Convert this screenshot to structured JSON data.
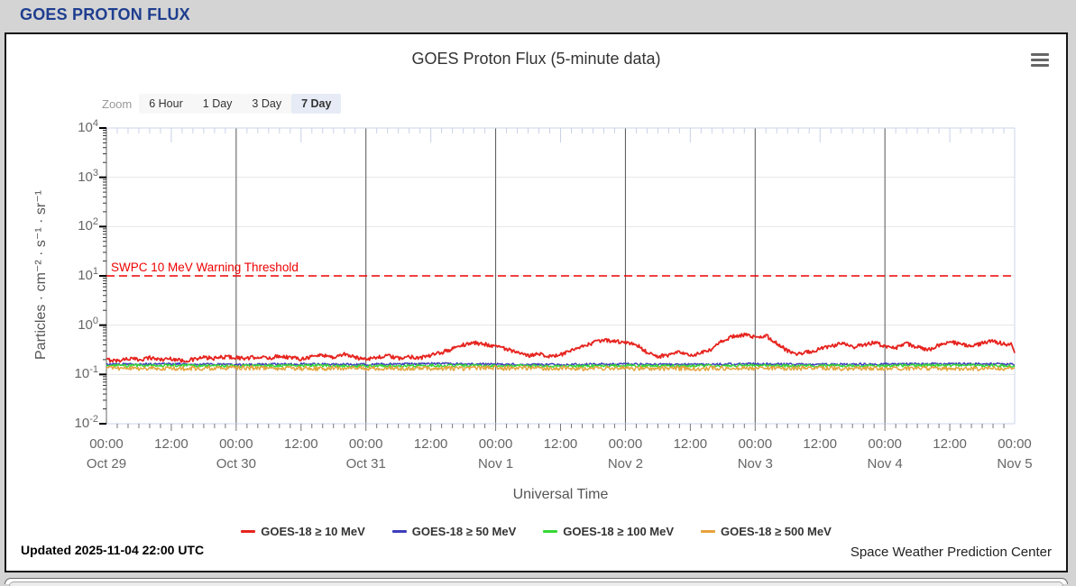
{
  "page": {
    "header_title": "GOES PROTON FLUX",
    "header_color": "#1e3e8f",
    "updated": "Updated 2025-11-04 22:00 UTC",
    "credit": "Space Weather Prediction Center"
  },
  "chart": {
    "title": "GOES Proton Flux (5-minute data)",
    "zoom_label": "Zoom",
    "zoom_buttons": [
      {
        "label": "6 Hour",
        "selected": false
      },
      {
        "label": "1 Day",
        "selected": false
      },
      {
        "label": "3 Day",
        "selected": false
      },
      {
        "label": "7 Day",
        "selected": true
      }
    ],
    "selected_button_bg": "#e6ebf5",
    "menu_icon": "hamburger-menu-icon"
  },
  "chart_data": {
    "type": "line",
    "title": "GOES Proton Flux (5-minute data)",
    "xlabel": "Universal Time",
    "ylabel": "Particles · cm⁻² · s⁻¹ · sr⁻¹",
    "x_range_hours": [
      0,
      168
    ],
    "ylog_range": [
      -2,
      4
    ],
    "grid": true,
    "legend_position": "bottom",
    "day_line_color": "#555555",
    "gridline_color": "#e6e6e6",
    "axis_border_color": "#ccd6eb",
    "y_ticks": [
      {
        "base": "10",
        "exp": "4"
      },
      {
        "base": "10",
        "exp": "3"
      },
      {
        "base": "10",
        "exp": "2"
      },
      {
        "base": "10",
        "exp": "1"
      },
      {
        "base": "10",
        "exp": "0"
      },
      {
        "base": "10",
        "exp": "-1"
      },
      {
        "base": "10",
        "exp": "-2"
      }
    ],
    "x_ticks": [
      {
        "hour": 0,
        "time": "00:00",
        "date": "Oct 29"
      },
      {
        "hour": 12,
        "time": "12:00"
      },
      {
        "hour": 24,
        "time": "00:00",
        "date": "Oct 30"
      },
      {
        "hour": 36,
        "time": "12:00"
      },
      {
        "hour": 48,
        "time": "00:00",
        "date": "Oct 31"
      },
      {
        "hour": 60,
        "time": "12:00"
      },
      {
        "hour": 72,
        "time": "00:00",
        "date": "Nov 1"
      },
      {
        "hour": 84,
        "time": "12:00"
      },
      {
        "hour": 96,
        "time": "00:00",
        "date": "Nov 2"
      },
      {
        "hour": 108,
        "time": "12:00"
      },
      {
        "hour": 120,
        "time": "00:00",
        "date": "Nov 3"
      },
      {
        "hour": 132,
        "time": "12:00"
      },
      {
        "hour": 144,
        "time": "00:00",
        "date": "Nov 4"
      },
      {
        "hour": 156,
        "time": "12:00"
      },
      {
        "hour": 168,
        "time": "00:00",
        "date": "Nov 5"
      }
    ],
    "threshold": {
      "label": "SWPC 10 MeV Warning Threshold",
      "value": 10,
      "color": "#ee0000"
    },
    "series": [
      {
        "name": "GOES-18 ≥ 10 MeV",
        "color": "#e6231e",
        "width": 1.8,
        "jitter": 0.09,
        "points": [
          [
            0,
            0.2
          ],
          [
            2,
            0.19
          ],
          [
            4,
            0.21
          ],
          [
            6,
            0.2
          ],
          [
            8,
            0.22
          ],
          [
            10,
            0.2
          ],
          [
            12,
            0.21
          ],
          [
            14,
            0.19
          ],
          [
            16,
            0.2
          ],
          [
            18,
            0.22
          ],
          [
            20,
            0.21
          ],
          [
            22,
            0.23
          ],
          [
            24,
            0.22
          ],
          [
            26,
            0.21
          ],
          [
            28,
            0.23
          ],
          [
            30,
            0.21
          ],
          [
            32,
            0.24
          ],
          [
            34,
            0.22
          ],
          [
            36,
            0.21
          ],
          [
            38,
            0.23
          ],
          [
            40,
            0.25
          ],
          [
            42,
            0.22
          ],
          [
            44,
            0.26
          ],
          [
            46,
            0.22
          ],
          [
            48,
            0.21
          ],
          [
            50,
            0.22
          ],
          [
            52,
            0.24
          ],
          [
            54,
            0.21
          ],
          [
            56,
            0.23
          ],
          [
            58,
            0.22
          ],
          [
            60,
            0.24
          ],
          [
            62,
            0.28
          ],
          [
            64,
            0.33
          ],
          [
            66,
            0.4
          ],
          [
            68,
            0.44
          ],
          [
            70,
            0.41
          ],
          [
            72,
            0.38
          ],
          [
            74,
            0.33
          ],
          [
            76,
            0.27
          ],
          [
            78,
            0.24
          ],
          [
            80,
            0.27
          ],
          [
            82,
            0.23
          ],
          [
            84,
            0.25
          ],
          [
            86,
            0.3
          ],
          [
            88,
            0.36
          ],
          [
            90,
            0.44
          ],
          [
            92,
            0.5
          ],
          [
            94,
            0.47
          ],
          [
            96,
            0.44
          ],
          [
            98,
            0.4
          ],
          [
            100,
            0.28
          ],
          [
            102,
            0.23
          ],
          [
            104,
            0.25
          ],
          [
            106,
            0.28
          ],
          [
            108,
            0.24
          ],
          [
            110,
            0.27
          ],
          [
            112,
            0.32
          ],
          [
            114,
            0.48
          ],
          [
            116,
            0.6
          ],
          [
            118,
            0.64
          ],
          [
            120,
            0.56
          ],
          [
            122,
            0.61
          ],
          [
            124,
            0.42
          ],
          [
            126,
            0.3
          ],
          [
            128,
            0.26
          ],
          [
            130,
            0.29
          ],
          [
            132,
            0.33
          ],
          [
            134,
            0.37
          ],
          [
            136,
            0.42
          ],
          [
            138,
            0.36
          ],
          [
            140,
            0.4
          ],
          [
            142,
            0.44
          ],
          [
            144,
            0.38
          ],
          [
            146,
            0.34
          ],
          [
            148,
            0.42
          ],
          [
            150,
            0.36
          ],
          [
            152,
            0.31
          ],
          [
            154,
            0.4
          ],
          [
            156,
            0.47
          ],
          [
            158,
            0.41
          ],
          [
            160,
            0.36
          ],
          [
            162,
            0.44
          ],
          [
            164,
            0.47
          ],
          [
            166,
            0.42
          ],
          [
            167.5,
            0.4
          ],
          [
            168,
            0.26
          ]
        ]
      },
      {
        "name": "GOES-18 ≥ 50 MeV",
        "color": "#3d3dbb",
        "width": 1.5,
        "jitter": 0.05,
        "points": [
          [
            0,
            0.16
          ],
          [
            12,
            0.165
          ],
          [
            24,
            0.158
          ],
          [
            36,
            0.162
          ],
          [
            48,
            0.16
          ],
          [
            60,
            0.165
          ],
          [
            72,
            0.162
          ],
          [
            84,
            0.158
          ],
          [
            96,
            0.163
          ],
          [
            108,
            0.16
          ],
          [
            120,
            0.164
          ],
          [
            132,
            0.16
          ],
          [
            144,
            0.162
          ],
          [
            156,
            0.165
          ],
          [
            168,
            0.162
          ]
        ]
      },
      {
        "name": "GOES-18 ≥ 100 MeV",
        "color": "#37d837",
        "width": 1.5,
        "jitter": 0.06,
        "points": [
          [
            0,
            0.15
          ],
          [
            12,
            0.153
          ],
          [
            24,
            0.148
          ],
          [
            36,
            0.152
          ],
          [
            48,
            0.149
          ],
          [
            60,
            0.152
          ],
          [
            72,
            0.15
          ],
          [
            84,
            0.148
          ],
          [
            96,
            0.151
          ],
          [
            108,
            0.149
          ],
          [
            120,
            0.152
          ],
          [
            132,
            0.15
          ],
          [
            144,
            0.151
          ],
          [
            156,
            0.153
          ],
          [
            168,
            0.15
          ]
        ]
      },
      {
        "name": "GOES-18 ≥ 500 MeV",
        "color": "#e6a23c",
        "width": 1.5,
        "jitter": 0.1,
        "points": [
          [
            0,
            0.134
          ],
          [
            12,
            0.132
          ],
          [
            24,
            0.136
          ],
          [
            36,
            0.133
          ],
          [
            48,
            0.134
          ],
          [
            60,
            0.132
          ],
          [
            72,
            0.135
          ],
          [
            84,
            0.133
          ],
          [
            96,
            0.134
          ],
          [
            108,
            0.132
          ],
          [
            120,
            0.135
          ],
          [
            132,
            0.133
          ],
          [
            144,
            0.134
          ],
          [
            156,
            0.132
          ],
          [
            168,
            0.134
          ]
        ]
      }
    ]
  }
}
